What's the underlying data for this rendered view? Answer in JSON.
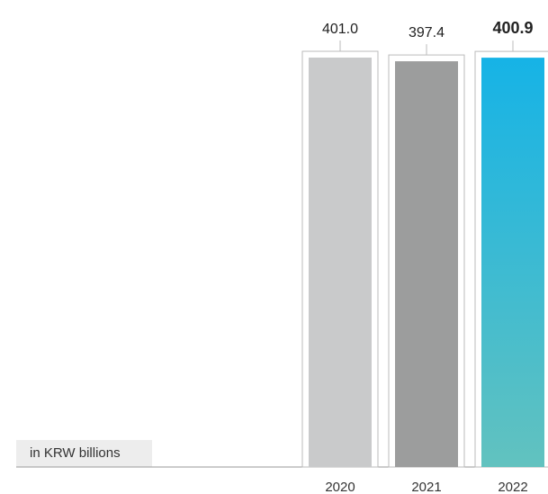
{
  "unit_label": "in KRW billions",
  "chart_data": {
    "type": "bar",
    "categories": [
      "2020",
      "2021",
      "2022"
    ],
    "values": [
      401.0,
      397.4,
      400.9
    ],
    "value_labels": [
      "401.0",
      "397.4",
      "400.9"
    ],
    "highlight_index": 2,
    "colors": {
      "bar_2020": "#c9cacb",
      "bar_2021": "#9c9d9d",
      "bar_2022_top": "#16b3e6",
      "bar_2022_bottom": "#62c2bf",
      "outline": "#bbbbbb",
      "baseline": "#9a9a9a",
      "label_text": "#222222"
    },
    "title": "",
    "xlabel": "",
    "ylabel": "",
    "legend": "none",
    "grid": false
  }
}
